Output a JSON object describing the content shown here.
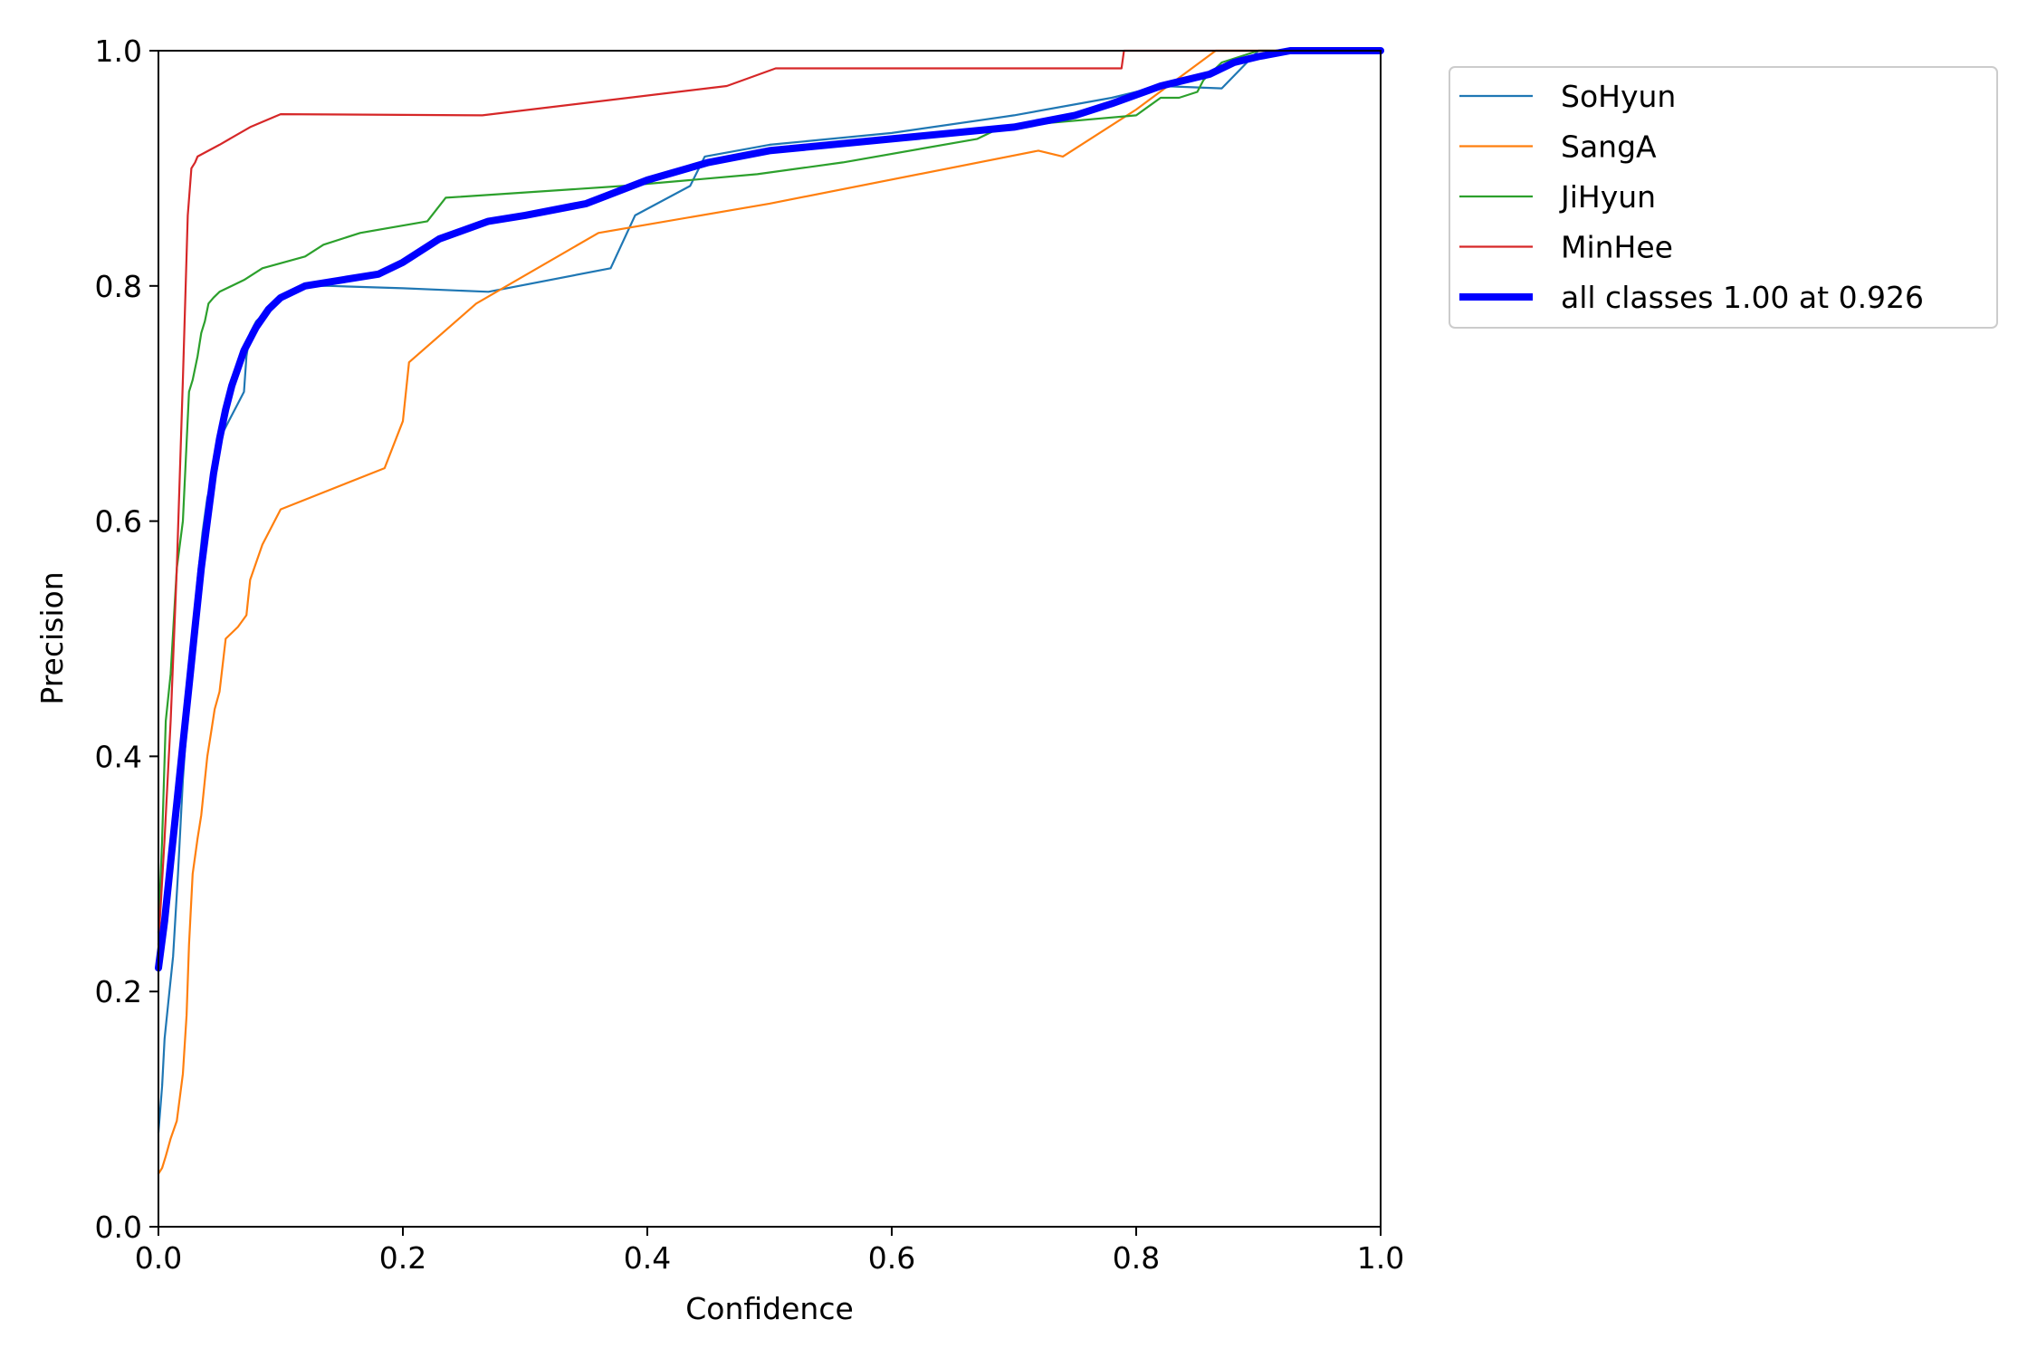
{
  "chart_data": {
    "type": "line",
    "xlabel": "Confidence",
    "ylabel": "Precision",
    "xlim": [
      0,
      1
    ],
    "ylim": [
      0,
      1
    ],
    "xticks": [
      "0.0",
      "0.2",
      "0.4",
      "0.6",
      "0.8",
      "1.0"
    ],
    "yticks": [
      "0.0",
      "0.2",
      "0.4",
      "0.6",
      "0.8",
      "1.0"
    ],
    "grid": false,
    "legend_position": "outside-top-right",
    "series": [
      {
        "name": "SoHyun",
        "color": "#1f77b4",
        "width": "thin",
        "x": [
          0.0,
          0.003,
          0.005,
          0.008,
          0.012,
          0.016,
          0.02,
          0.024,
          0.028,
          0.032,
          0.036,
          0.04,
          0.045,
          0.05,
          0.055,
          0.06,
          0.065,
          0.07,
          0.072,
          0.075,
          0.08,
          0.09,
          0.1,
          0.12,
          0.14,
          0.2,
          0.27,
          0.37,
          0.39,
          0.435,
          0.447,
          0.5,
          0.6,
          0.7,
          0.78,
          0.82,
          0.87,
          0.9,
          1.0
        ],
        "y": [
          0.08,
          0.12,
          0.16,
          0.19,
          0.23,
          0.3,
          0.38,
          0.44,
          0.5,
          0.55,
          0.59,
          0.62,
          0.64,
          0.67,
          0.68,
          0.69,
          0.7,
          0.71,
          0.74,
          0.76,
          0.77,
          0.78,
          0.79,
          0.8,
          0.8,
          0.798,
          0.795,
          0.815,
          0.86,
          0.885,
          0.91,
          0.92,
          0.93,
          0.945,
          0.96,
          0.97,
          0.968,
          1.0,
          1.0
        ]
      },
      {
        "name": "SangA",
        "color": "#ff7f0e",
        "width": "thin",
        "x": [
          0.0,
          0.003,
          0.006,
          0.01,
          0.015,
          0.02,
          0.023,
          0.025,
          0.028,
          0.032,
          0.035,
          0.038,
          0.04,
          0.043,
          0.046,
          0.05,
          0.055,
          0.065,
          0.072,
          0.075,
          0.085,
          0.1,
          0.185,
          0.2,
          0.205,
          0.26,
          0.36,
          0.5,
          0.72,
          0.74,
          0.8,
          0.865,
          0.9,
          1.0
        ],
        "y": [
          0.045,
          0.05,
          0.06,
          0.075,
          0.09,
          0.13,
          0.18,
          0.24,
          0.3,
          0.33,
          0.35,
          0.38,
          0.4,
          0.42,
          0.44,
          0.455,
          0.5,
          0.51,
          0.52,
          0.55,
          0.58,
          0.61,
          0.645,
          0.685,
          0.735,
          0.785,
          0.845,
          0.87,
          0.915,
          0.91,
          0.95,
          1.0,
          1.0,
          1.0
        ]
      },
      {
        "name": "JiHyun",
        "color": "#2ca02c",
        "width": "thin",
        "x": [
          0.0,
          0.003,
          0.006,
          0.01,
          0.015,
          0.02,
          0.025,
          0.028,
          0.032,
          0.035,
          0.038,
          0.041,
          0.045,
          0.05,
          0.07,
          0.085,
          0.12,
          0.135,
          0.165,
          0.22,
          0.235,
          0.38,
          0.49,
          0.56,
          0.67,
          0.69,
          0.8,
          0.82,
          0.835,
          0.85,
          0.855,
          0.87,
          0.9,
          1.0
        ],
        "y": [
          0.25,
          0.33,
          0.43,
          0.47,
          0.56,
          0.6,
          0.71,
          0.72,
          0.74,
          0.76,
          0.77,
          0.785,
          0.79,
          0.795,
          0.805,
          0.815,
          0.825,
          0.835,
          0.845,
          0.855,
          0.875,
          0.885,
          0.895,
          0.905,
          0.925,
          0.935,
          0.945,
          0.96,
          0.96,
          0.965,
          0.975,
          0.99,
          1.0,
          1.0
        ]
      },
      {
        "name": "MinHee",
        "color": "#d62728",
        "width": "thin",
        "x": [
          0.0,
          0.005,
          0.01,
          0.015,
          0.02,
          0.024,
          0.027,
          0.03,
          0.032,
          0.05,
          0.075,
          0.1,
          0.265,
          0.465,
          0.505,
          0.7,
          0.788,
          0.79,
          0.8,
          1.0
        ],
        "y": [
          0.24,
          0.33,
          0.43,
          0.56,
          0.72,
          0.86,
          0.9,
          0.905,
          0.91,
          0.92,
          0.935,
          0.946,
          0.945,
          0.97,
          0.985,
          0.985,
          0.985,
          1.0,
          1.0,
          1.0
        ]
      },
      {
        "name": "all classes 1.00 at 0.926",
        "color": "#0000ff",
        "width": "thick",
        "x": [
          0.0,
          0.005,
          0.01,
          0.015,
          0.02,
          0.025,
          0.03,
          0.035,
          0.04,
          0.045,
          0.05,
          0.055,
          0.06,
          0.065,
          0.07,
          0.08,
          0.09,
          0.1,
          0.12,
          0.15,
          0.18,
          0.2,
          0.23,
          0.27,
          0.3,
          0.35,
          0.4,
          0.45,
          0.5,
          0.6,
          0.7,
          0.75,
          0.78,
          0.82,
          0.86,
          0.88,
          0.9,
          0.926,
          1.0
        ],
        "y": [
          0.22,
          0.26,
          0.31,
          0.36,
          0.41,
          0.46,
          0.51,
          0.56,
          0.6,
          0.64,
          0.67,
          0.695,
          0.715,
          0.73,
          0.745,
          0.765,
          0.78,
          0.79,
          0.8,
          0.805,
          0.81,
          0.82,
          0.84,
          0.855,
          0.86,
          0.87,
          0.89,
          0.905,
          0.915,
          0.925,
          0.935,
          0.945,
          0.955,
          0.97,
          0.98,
          0.99,
          0.995,
          1.0,
          1.0
        ]
      }
    ]
  }
}
